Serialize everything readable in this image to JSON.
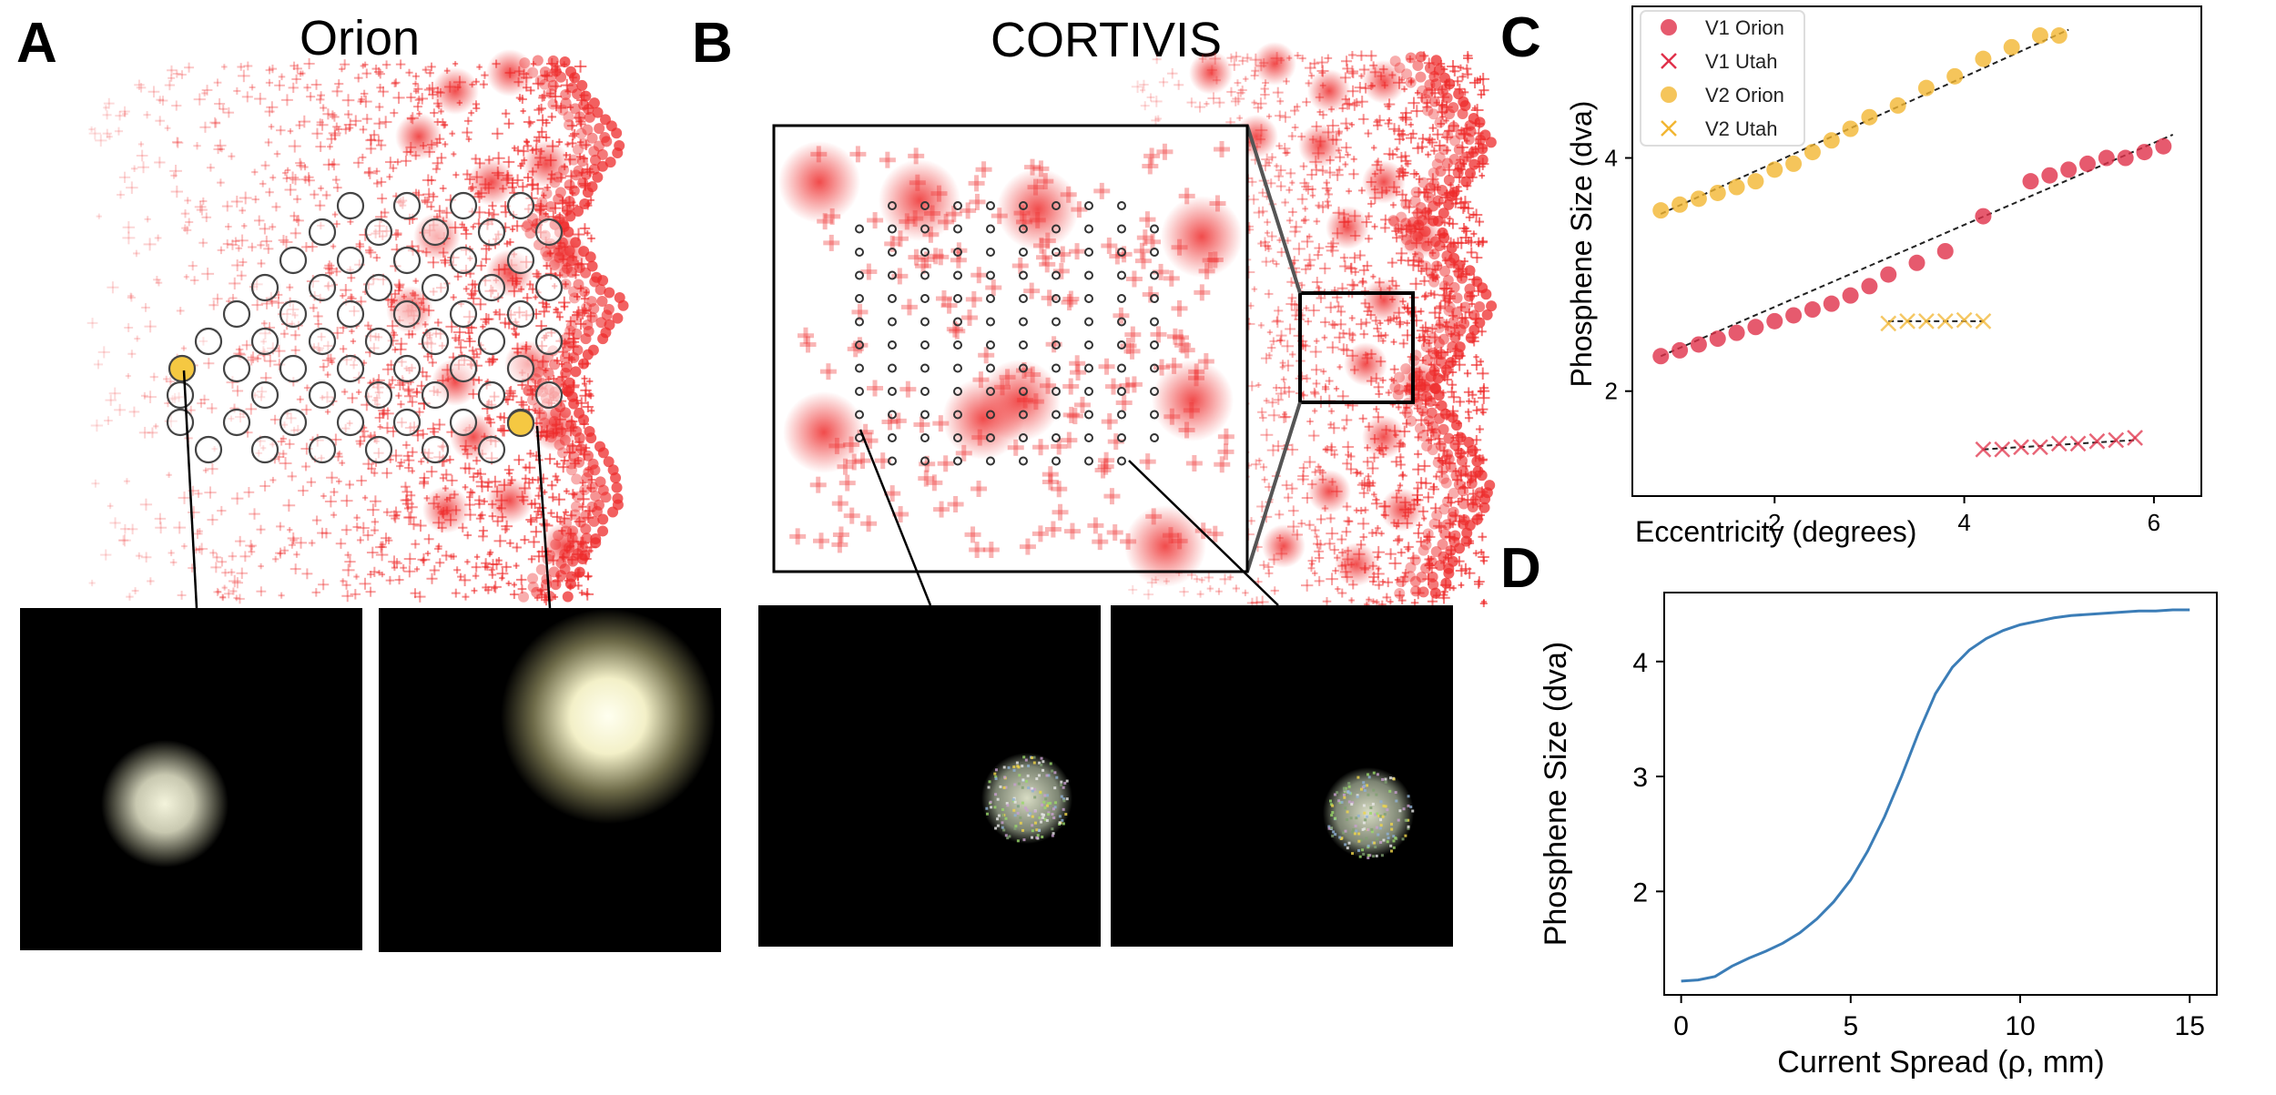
{
  "panels": {
    "a": {
      "letter": "A",
      "title": "Orion"
    },
    "b": {
      "letter": "B",
      "title": "CORTIVIS"
    },
    "c": {
      "letter": "C"
    },
    "d": {
      "letter": "D"
    }
  },
  "colors": {
    "v1": "#e0314a",
    "v2": "#f2b632",
    "cortex": "#ee2b2b",
    "curve": "#3b7db7",
    "fit_line": "#222222",
    "highlight_electrode": "#f5c842"
  },
  "chart_data": [
    {
      "panel": "C",
      "type": "scatter",
      "xlabel": "Eccentricity (degrees)",
      "ylabel": "Phosphene Size (dva)",
      "xlim": [
        0.5,
        6.5
      ],
      "ylim": [
        1.1,
        5.3
      ],
      "xticks": [
        "2",
        "4",
        "6"
      ],
      "yticks": [
        "2",
        "4"
      ],
      "grid": false,
      "legend_position": "top-left",
      "series": [
        {
          "name": "V1 Orion",
          "marker": "circle",
          "color": "#e0314a",
          "x": [
            0.8,
            1.0,
            1.2,
            1.4,
            1.6,
            1.8,
            2.0,
            2.2,
            2.4,
            2.6,
            2.8,
            3.0,
            3.2,
            3.5,
            3.8,
            4.2,
            4.7,
            4.9,
            5.1,
            5.3,
            5.5,
            5.7,
            5.9,
            6.1
          ],
          "y": [
            2.3,
            2.35,
            2.4,
            2.45,
            2.5,
            2.55,
            2.6,
            2.65,
            2.7,
            2.75,
            2.82,
            2.9,
            3.0,
            3.1,
            3.2,
            3.5,
            3.8,
            3.85,
            3.9,
            3.95,
            4.0,
            4.0,
            4.05,
            4.1
          ]
        },
        {
          "name": "V1 Utah",
          "marker": "x",
          "color": "#e0314a",
          "x": [
            4.2,
            4.4,
            4.6,
            4.8,
            5.0,
            5.2,
            5.4,
            5.6,
            5.8
          ],
          "y": [
            1.5,
            1.5,
            1.52,
            1.52,
            1.55,
            1.55,
            1.57,
            1.58,
            1.6
          ]
        },
        {
          "name": "V2 Orion",
          "marker": "circle",
          "color": "#f2b632",
          "x": [
            0.8,
            1.0,
            1.2,
            1.4,
            1.6,
            1.8,
            2.0,
            2.2,
            2.4,
            2.6,
            2.8,
            3.0,
            3.3,
            3.6,
            3.9,
            4.2,
            4.5,
            4.8,
            5.0
          ],
          "y": [
            3.55,
            3.6,
            3.65,
            3.7,
            3.75,
            3.8,
            3.9,
            3.95,
            4.05,
            4.15,
            4.25,
            4.35,
            4.45,
            4.6,
            4.7,
            4.85,
            4.95,
            5.05,
            5.05
          ]
        },
        {
          "name": "V2 Utah",
          "marker": "x",
          "color": "#f2b632",
          "x": [
            3.2,
            3.4,
            3.6,
            3.8,
            4.0,
            4.2
          ],
          "y": [
            2.58,
            2.6,
            2.6,
            2.6,
            2.61,
            2.6
          ]
        }
      ],
      "fit_lines": [
        {
          "x": [
            0.8,
            6.2
          ],
          "y": [
            2.3,
            4.2
          ]
        },
        {
          "x": [
            4.2,
            5.8
          ],
          "y": [
            1.5,
            1.58
          ]
        },
        {
          "x": [
            0.8,
            5.1
          ],
          "y": [
            3.52,
            5.1
          ]
        },
        {
          "x": [
            3.2,
            4.2
          ],
          "y": [
            2.6,
            2.6
          ]
        }
      ]
    },
    {
      "panel": "D",
      "type": "line",
      "xlabel": "Current Spread (ρ, mm)",
      "ylabel": "Phosphene Size (dva)",
      "xlim": [
        -0.5,
        15.8
      ],
      "ylim": [
        1.1,
        4.6
      ],
      "xticks": [
        "0",
        "5",
        "10",
        "15"
      ],
      "yticks": [
        "2",
        "3",
        "4"
      ],
      "grid": false,
      "series": [
        {
          "name": "",
          "color": "#3b7db7",
          "x": [
            0,
            0.5,
            1,
            1.5,
            2,
            2.5,
            3,
            3.5,
            4,
            4.5,
            5,
            5.5,
            6,
            6.5,
            7,
            7.5,
            8,
            8.5,
            9,
            9.5,
            10,
            10.5,
            11,
            11.5,
            12,
            12.5,
            13,
            13.5,
            14,
            14.5,
            15
          ],
          "y": [
            1.22,
            1.23,
            1.26,
            1.35,
            1.42,
            1.48,
            1.55,
            1.64,
            1.76,
            1.91,
            2.1,
            2.35,
            2.65,
            3.0,
            3.38,
            3.72,
            3.95,
            4.1,
            4.2,
            4.27,
            4.32,
            4.35,
            4.38,
            4.4,
            4.41,
            4.42,
            4.43,
            4.44,
            4.44,
            4.45,
            4.45
          ]
        }
      ]
    }
  ]
}
